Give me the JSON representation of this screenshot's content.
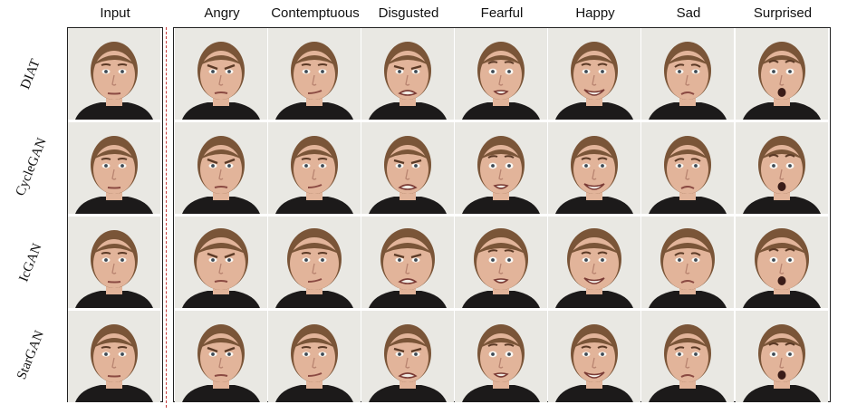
{
  "columns": [
    {
      "key": "input",
      "label": "Input"
    },
    {
      "key": "angry",
      "label": "Angry"
    },
    {
      "key": "contemptuous",
      "label": "Contemptuous"
    },
    {
      "key": "disgusted",
      "label": "Disgusted"
    },
    {
      "key": "fearful",
      "label": "Fearful"
    },
    {
      "key": "happy",
      "label": "Happy"
    },
    {
      "key": "sad",
      "label": "Sad"
    },
    {
      "key": "surprised",
      "label": "Surprised"
    }
  ],
  "rows": [
    {
      "key": "diat",
      "label": "DIAT"
    },
    {
      "key": "cyclegan",
      "label": "CycleGAN"
    },
    {
      "key": "icgan",
      "label": "IcGAN"
    },
    {
      "key": "stargan",
      "label": "StarGAN"
    }
  ],
  "colors": {
    "background_photo": "#e9e8e3",
    "skin": "#e2b49a",
    "hair": "#7a5538",
    "shirt": "#1c1a1a",
    "divider": "#c63a3a",
    "frame": "#222222"
  }
}
